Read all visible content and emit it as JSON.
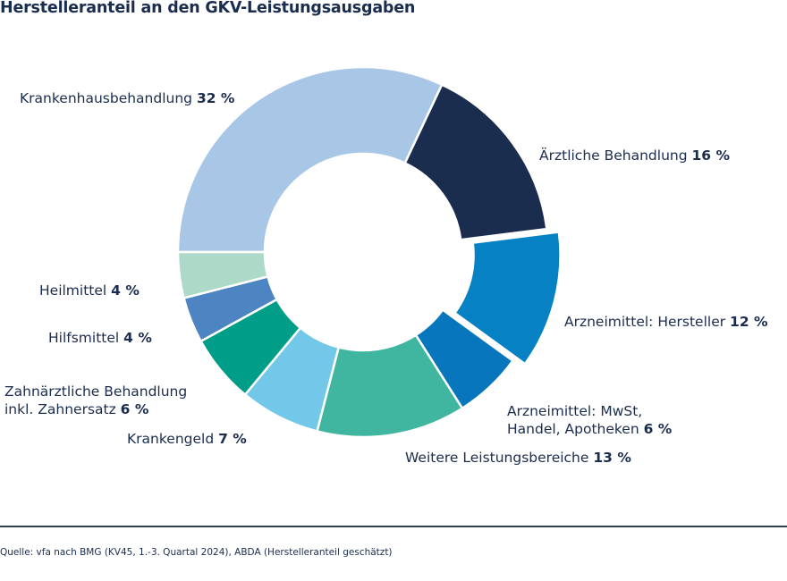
{
  "title": "Herstelleranteil an den GKV-Leistungsausgaben",
  "source": "Quelle: vfa nach BMG (KV45, 1.-3. Quartal 2024), ABDA (Herstelleranteil geschätzt)",
  "chart_data": {
    "type": "pie",
    "style": "donut",
    "title": "Herstelleranteil an den GKV-Leistungsausgaben",
    "unit": "%",
    "exploded": "Arzneimittel: Hersteller",
    "slices": [
      {
        "label": "Krankenhausbehandlung",
        "value": 32,
        "value_text": "32 %",
        "color": "#a8c7e6"
      },
      {
        "label": "Ärztliche Behandlung",
        "value": 16,
        "value_text": "16 %",
        "color": "#1b2d4f"
      },
      {
        "label": "Arzneimittel: Hersteller",
        "value": 12,
        "value_text": "12 %",
        "color": "#0681c4"
      },
      {
        "label": "Arzneimittel: MwSt, Handel, Apotheken",
        "value": 6,
        "value_text": "6 %",
        "color": "#0776bd"
      },
      {
        "label": "Weitere Leistungsbereiche",
        "value": 13,
        "value_text": "13 %",
        "color": "#40b6a0"
      },
      {
        "label": "Krankengeld",
        "value": 7,
        "value_text": "7 %",
        "color": "#73c8ea"
      },
      {
        "label": "Zahnärztliche Behandlung inkl. Zahnersatz",
        "value": 6,
        "value_text": "6 %",
        "color": "#009d88"
      },
      {
        "label": "Hilfsmittel",
        "value": 4,
        "value_text": "4 %",
        "color": "#4d85c2"
      },
      {
        "label": "Heilmittel",
        "value": 4,
        "value_text": "4 %",
        "color": "#acd9c8"
      }
    ],
    "labels_display": {
      "krankenhaus": [
        "Krankenhausbehandlung"
      ],
      "aerztlich": [
        "Ärztliche Behandlung"
      ],
      "hersteller": [
        "Arzneimittel: Hersteller"
      ],
      "mwst": [
        "Arzneimittel: MwSt,",
        "Handel, Apotheken"
      ],
      "weitere": [
        "Weitere Leistungsbereiche"
      ],
      "krankengeld": [
        "Krankengeld"
      ],
      "zahn": [
        "Zahnärztliche Behandlung",
        "inkl. Zahnersatz"
      ],
      "hilfsmittel": [
        "Hilfsmittel"
      ],
      "heilmittel": [
        "Heilmittel"
      ]
    }
  }
}
